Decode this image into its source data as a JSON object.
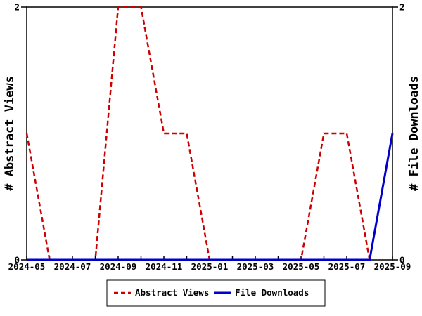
{
  "chart_data": {
    "type": "line",
    "x": [
      "2024-05",
      "2024-06",
      "2024-07",
      "2024-08",
      "2024-09",
      "2024-10",
      "2024-11",
      "2024-12",
      "2025-01",
      "2025-02",
      "2025-03",
      "2025-04",
      "2025-05",
      "2025-06",
      "2025-07",
      "2025-08",
      "2025-09"
    ],
    "x_tick_label_indices": [
      0,
      2,
      4,
      6,
      8,
      10,
      12,
      14,
      16
    ],
    "ylim": [
      0,
      2
    ],
    "yticks": [
      0,
      2
    ],
    "ytick_labels": [
      "0",
      "2"
    ],
    "ylabel_left": "# Abstract Views",
    "ylabel_right": "# File Downloads",
    "grid": false,
    "legend_position": "bottom",
    "series": [
      {
        "name": "Abstract Views",
        "color": "#cc0000",
        "style": "dashed",
        "yaxis": "left",
        "values": [
          1,
          0,
          0,
          0,
          2,
          2,
          1,
          1,
          0,
          0,
          0,
          0,
          0,
          1,
          1,
          0,
          null
        ]
      },
      {
        "name": "File Downloads",
        "color": "#0000cc",
        "style": "solid",
        "yaxis": "right",
        "values": [
          0,
          0,
          0,
          0,
          0,
          0,
          0,
          0,
          0,
          0,
          0,
          0,
          0,
          0,
          0,
          0,
          1
        ]
      }
    ],
    "colors": {
      "axis": "#000000",
      "background": "#ffffff"
    }
  }
}
